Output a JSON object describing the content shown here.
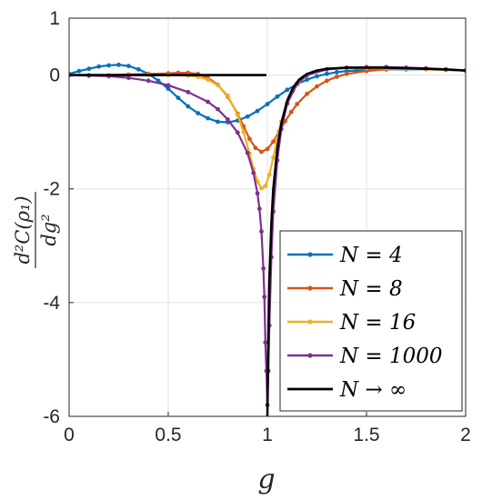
{
  "chart_data": {
    "type": "line",
    "xlabel": "g",
    "ylabel_numerator": "d²C(ρ₁)",
    "ylabel_denominator": "dg²",
    "xlim": [
      0,
      2
    ],
    "ylim": [
      -6,
      1
    ],
    "xticks": [
      "0",
      "0.5",
      "1",
      "1.5",
      "2"
    ],
    "yticks": [
      "1",
      "0",
      "-2",
      "-4",
      "-6"
    ],
    "grid": true,
    "legend_position": "bottom-right",
    "series": [
      {
        "name": "N = 4",
        "color": "#0072BD",
        "markers": true,
        "x": [
          0,
          0.05,
          0.1,
          0.15,
          0.2,
          0.25,
          0.3,
          0.35,
          0.4,
          0.45,
          0.5,
          0.55,
          0.6,
          0.65,
          0.7,
          0.75,
          0.8,
          0.85,
          0.9,
          0.95,
          1.0,
          1.05,
          1.1,
          1.15,
          1.2,
          1.25,
          1.3,
          1.35,
          1.4,
          1.45,
          1.5,
          1.6,
          1.7,
          1.8,
          1.9,
          2.0
        ],
        "y": [
          0.02,
          0.07,
          0.11,
          0.15,
          0.17,
          0.18,
          0.16,
          0.1,
          0.02,
          -0.1,
          -0.24,
          -0.4,
          -0.55,
          -0.67,
          -0.76,
          -0.82,
          -0.83,
          -0.8,
          -0.73,
          -0.63,
          -0.51,
          -0.38,
          -0.26,
          -0.16,
          -0.08,
          -0.02,
          0.02,
          0.05,
          0.07,
          0.08,
          0.09,
          0.1,
          0.1,
          0.1,
          0.09,
          0.08
        ]
      },
      {
        "name": "N = 8",
        "color": "#D95319",
        "markers": true,
        "x": [
          0,
          0.1,
          0.2,
          0.3,
          0.4,
          0.5,
          0.55,
          0.6,
          0.65,
          0.7,
          0.75,
          0.8,
          0.85,
          0.88,
          0.91,
          0.94,
          0.97,
          1.0,
          1.03,
          1.06,
          1.09,
          1.12,
          1.15,
          1.2,
          1.25,
          1.3,
          1.35,
          1.4,
          1.5,
          1.6,
          1.7,
          1.8,
          1.9,
          2.0
        ],
        "y": [
          0.0,
          0.0,
          0.0,
          0.01,
          0.02,
          0.03,
          0.04,
          0.04,
          0.02,
          -0.05,
          -0.17,
          -0.38,
          -0.68,
          -0.9,
          -1.12,
          -1.28,
          -1.35,
          -1.3,
          -1.17,
          -0.99,
          -0.81,
          -0.65,
          -0.51,
          -0.33,
          -0.2,
          -0.1,
          -0.03,
          0.02,
          0.07,
          0.1,
          0.11,
          0.11,
          0.1,
          0.08
        ]
      },
      {
        "name": "N = 16",
        "color": "#EDB120",
        "markers": true,
        "x": [
          0,
          0.1,
          0.2,
          0.3,
          0.4,
          0.5,
          0.6,
          0.65,
          0.7,
          0.75,
          0.8,
          0.85,
          0.88,
          0.91,
          0.93,
          0.95,
          0.97,
          0.99,
          1.01,
          1.03,
          1.05,
          1.07,
          1.1,
          1.13,
          1.16,
          1.2,
          1.25,
          1.3,
          1.4,
          1.5,
          1.6,
          1.7,
          1.8,
          1.9,
          2.0
        ],
        "y": [
          0.0,
          0.0,
          0.0,
          0.0,
          0.0,
          0.0,
          -0.01,
          -0.03,
          -0.08,
          -0.18,
          -0.36,
          -0.7,
          -1.0,
          -1.38,
          -1.65,
          -1.87,
          -1.99,
          -1.95,
          -1.75,
          -1.45,
          -1.12,
          -0.82,
          -0.5,
          -0.28,
          -0.12,
          0.0,
          0.07,
          0.1,
          0.12,
          0.12,
          0.12,
          0.11,
          0.1,
          0.09,
          0.08
        ]
      },
      {
        "name": "N = 1000",
        "color": "#7E2F8E",
        "markers": true,
        "x": [
          0,
          0.1,
          0.2,
          0.3,
          0.4,
          0.5,
          0.6,
          0.7,
          0.75,
          0.8,
          0.85,
          0.9,
          0.93,
          0.95,
          0.96,
          0.97,
          0.98,
          0.985,
          0.99,
          0.995,
          1.0,
          1.005,
          1.01,
          1.02,
          1.03,
          1.05,
          1.07,
          1.1,
          1.15,
          1.2,
          1.3,
          1.4,
          1.5,
          1.6,
          1.7,
          1.8,
          1.9,
          2.0
        ],
        "y": [
          -0.0,
          -0.01,
          -0.02,
          -0.05,
          -0.1,
          -0.18,
          -0.3,
          -0.47,
          -0.6,
          -0.78,
          -1.01,
          -1.37,
          -1.72,
          -2.08,
          -2.35,
          -2.75,
          -3.4,
          -3.9,
          -4.7,
          -5.2,
          -5.8,
          -5.2,
          -4.4,
          -3.2,
          -2.4,
          -1.5,
          -0.95,
          -0.5,
          -0.15,
          0.0,
          0.1,
          0.13,
          0.14,
          0.14,
          0.13,
          0.12,
          0.1,
          0.08
        ]
      },
      {
        "name": "N → ∞",
        "color": "#000000",
        "markers": false,
        "segments": [
          {
            "x": [
              0,
              0.995
            ],
            "y": [
              0.0,
              0.0
            ]
          },
          {
            "x": [
              1.0,
              1.005,
              1.01,
              1.02,
              1.03,
              1.05,
              1.07,
              1.1,
              1.13,
              1.16,
              1.2,
              1.25,
              1.3,
              1.4,
              1.5,
              1.6,
              1.7,
              1.8,
              1.9,
              2.0
            ],
            "y": [
              -6.0,
              -4.6,
              -3.6,
              -2.6,
              -2.0,
              -1.3,
              -0.85,
              -0.45,
              -0.22,
              -0.08,
              0.02,
              0.08,
              0.11,
              0.13,
              0.13,
              0.13,
              0.12,
              0.11,
              0.1,
              0.08
            ]
          }
        ]
      }
    ]
  }
}
